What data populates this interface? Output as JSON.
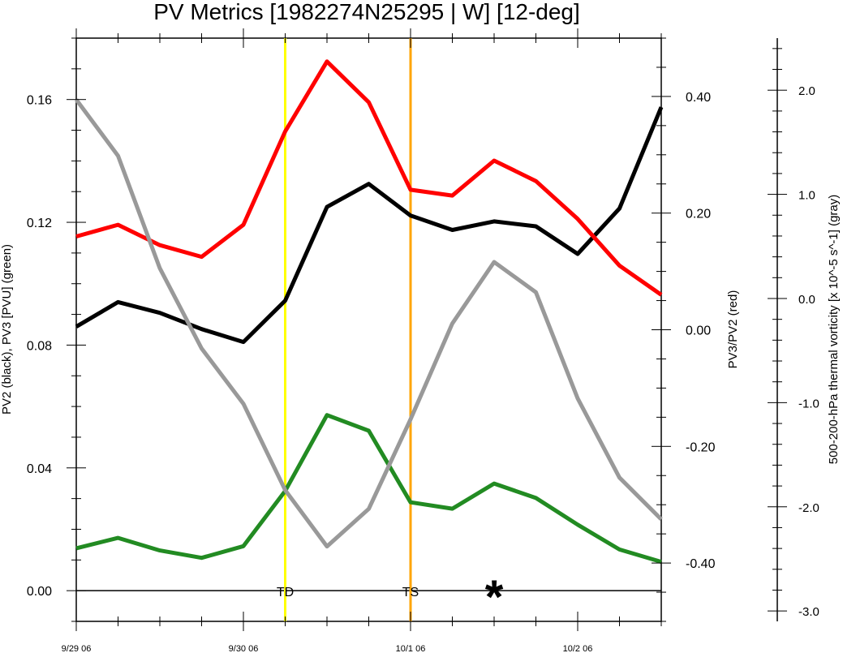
{
  "chart_data": {
    "type": "line",
    "title": "PV Metrics [1982274N25295 | W] [12-deg]",
    "x": [
      0,
      0.25,
      0.5,
      0.75,
      1.0,
      1.25,
      1.5,
      1.75,
      2.0,
      2.25,
      2.5,
      2.75,
      3.0,
      3.25,
      3.5
    ],
    "x_ticks": [
      {
        "x": 0,
        "label": "9/29 06"
      },
      {
        "x": 1,
        "label": "9/30 06"
      },
      {
        "x": 2,
        "label": "10/1 06"
      },
      {
        "x": 3,
        "label": "10/2 06"
      }
    ],
    "axes": {
      "left": {
        "label": "PV2 (black), PV3 [PVU] (green)",
        "range": [
          -0.01,
          0.18
        ],
        "ticks": [
          0.0,
          0.04,
          0.08,
          0.12,
          0.16
        ],
        "tick_labels": [
          "0.00",
          "0.04",
          "0.08",
          "0.12",
          "0.16"
        ]
      },
      "right": {
        "label": "PV3/PV2 (red)",
        "range": [
          -0.5,
          0.5
        ],
        "ticks": [
          -0.4,
          -0.2,
          0.0,
          0.2,
          0.4
        ],
        "tick_labels": [
          "-0.40",
          "-0.20",
          "0.00",
          "0.20",
          "0.40"
        ]
      },
      "far_right": {
        "label": "500-200-hPa thermal vorticity [x 10^-5 s^-1] (gray)",
        "range": [
          -3.1,
          2.5
        ],
        "ticks": [
          -3,
          -2,
          -1,
          0,
          1,
          2
        ],
        "tick_labels": [
          "-3.0",
          "-2.0",
          "-1.0",
          "0.0",
          "1.0",
          "2.0"
        ]
      }
    },
    "series": [
      {
        "axis": "left",
        "color": "#000000",
        "values": [
          0.086,
          0.094,
          0.0905,
          0.0852,
          0.081,
          0.0945,
          0.125,
          0.1325,
          0.1222,
          0.1175,
          0.1203,
          0.1187,
          0.1097,
          0.1245,
          0.1575
        ]
      },
      {
        "axis": "left",
        "color": "#228b22",
        "values": [
          0.0138,
          0.0172,
          0.0131,
          0.0107,
          0.0145,
          0.0325,
          0.0572,
          0.0521,
          0.0288,
          0.0267,
          0.0349,
          0.0302,
          0.0215,
          0.0134,
          0.0094
        ]
      },
      {
        "axis": "right",
        "color": "#ff0000",
        "values": [
          0.16,
          0.18,
          0.145,
          0.125,
          0.18,
          0.34,
          0.46,
          0.39,
          0.24,
          0.23,
          0.29,
          0.255,
          0.19,
          0.11,
          0.06
        ]
      },
      {
        "axis": "far_right",
        "color": "#999999",
        "values": [
          1.91,
          1.37,
          0.29,
          -0.48,
          -1.01,
          -1.84,
          -2.38,
          -2.02,
          -1.16,
          -0.24,
          0.35,
          0.06,
          -0.96,
          -1.72,
          -2.12
        ]
      }
    ],
    "vertical_markers": [
      {
        "x": 1.25,
        "label": "TD",
        "color": "#ffff00"
      },
      {
        "x": 2.0,
        "label": "TS",
        "color": "#ffa500"
      }
    ],
    "annotations": [
      {
        "x": 2.5,
        "y": 0.0,
        "text": "*"
      }
    ],
    "grid": false,
    "zero_line": true
  }
}
